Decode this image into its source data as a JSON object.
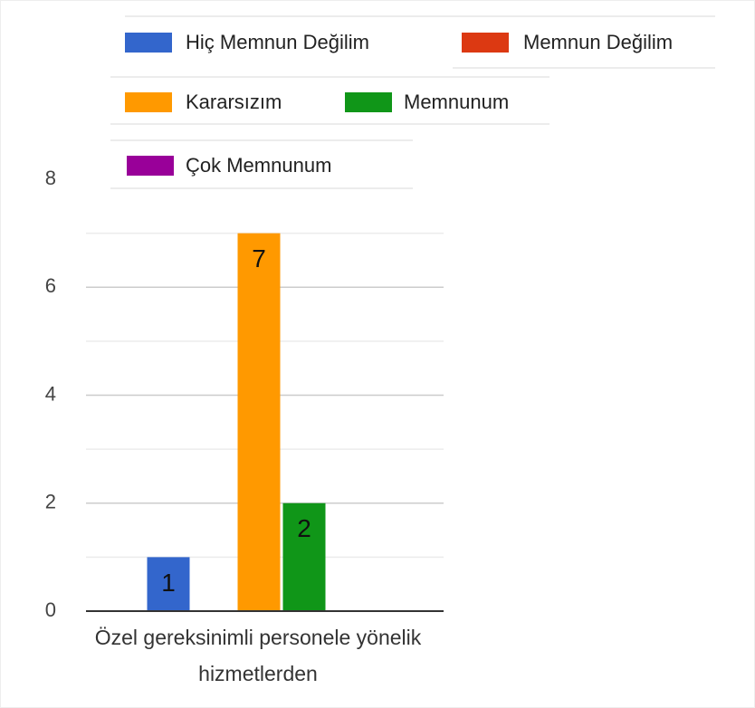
{
  "chart_data": {
    "type": "bar",
    "categories": [
      "Özel gereksinimli personele yönelik hizmetlerden"
    ],
    "series": [
      {
        "name": "Hiç Memnun Değilim",
        "color": "#3366cc",
        "values": [
          1
        ]
      },
      {
        "name": "Memnun Değilim",
        "color": "#dc3912",
        "values": [
          0
        ]
      },
      {
        "name": "Kararsızım",
        "color": "#ff9900",
        "values": [
          7
        ]
      },
      {
        "name": "Memnunum",
        "color": "#109618",
        "values": [
          2
        ]
      },
      {
        "name": "Çok Memnunum",
        "color": "#990099",
        "values": [
          0
        ]
      }
    ],
    "ylim": [
      0,
      8
    ],
    "yticks": [
      0,
      2,
      4,
      6,
      8
    ],
    "minor_yticks": [
      1,
      3,
      5,
      7
    ],
    "grid": true,
    "legend": "top"
  }
}
